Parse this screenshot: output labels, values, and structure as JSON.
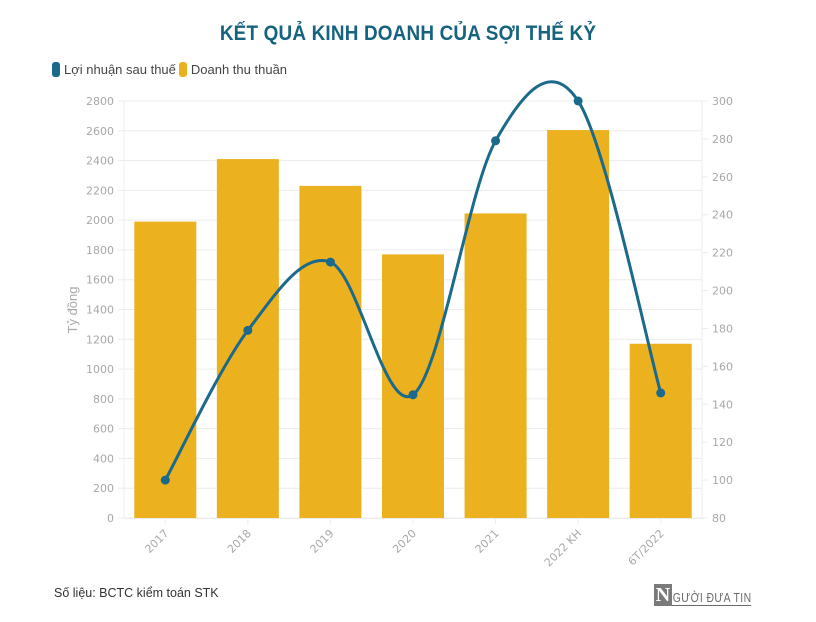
{
  "title": "KẾT QUẢ KINH DOANH CỦA SỢI THẾ KỶ",
  "legend": [
    {
      "label": "Lợi nhuận sau thuế",
      "color": "#1b6a8c"
    },
    {
      "label": "Doanh thu thuần",
      "color": "#ebb11f"
    }
  ],
  "source": "Số liệu: BCTC kiểm toán STK",
  "logo": {
    "initial": "N",
    "text": "GƯỜI ĐƯA TIN"
  },
  "colors": {
    "title": "#16637f",
    "bar": "#ebb11f",
    "line": "#1b6a8c",
    "grid": "#ececec",
    "tick": "#a8a8a8"
  },
  "chart_data": {
    "type": "bar+line",
    "title": "KẾT QUẢ KINH DOANH CỦA SỢI THẾ KỶ",
    "categories": [
      "2017",
      "2018",
      "2019",
      "2020",
      "2021",
      "2022 KH",
      "6T/2022"
    ],
    "series": [
      {
        "name": "Doanh thu thuần",
        "type": "bar",
        "axis": "left",
        "color": "#ebb11f",
        "values": [
          1990,
          2410,
          2230,
          1770,
          2045,
          2605,
          1170
        ]
      },
      {
        "name": "Lợi nhuận sau thuế",
        "type": "line",
        "axis": "right",
        "color": "#1b6a8c",
        "smooth": true,
        "values": [
          100,
          179,
          215,
          145,
          279,
          300,
          146
        ]
      }
    ],
    "ylabel": "Tỷ đồng",
    "ylabel_right": "",
    "xlabel": "",
    "ylim": [
      0,
      2800
    ],
    "yticks": [
      0,
      200,
      400,
      600,
      800,
      1000,
      1200,
      1400,
      1600,
      1800,
      2000,
      2200,
      2400,
      2600,
      2800
    ],
    "ylim_right": [
      80,
      300
    ],
    "yticks_right": [
      80,
      100,
      120,
      140,
      160,
      180,
      200,
      220,
      240,
      260,
      280,
      300
    ],
    "grid": true,
    "legend_position": "top-left",
    "xtick_rotation": -45
  }
}
